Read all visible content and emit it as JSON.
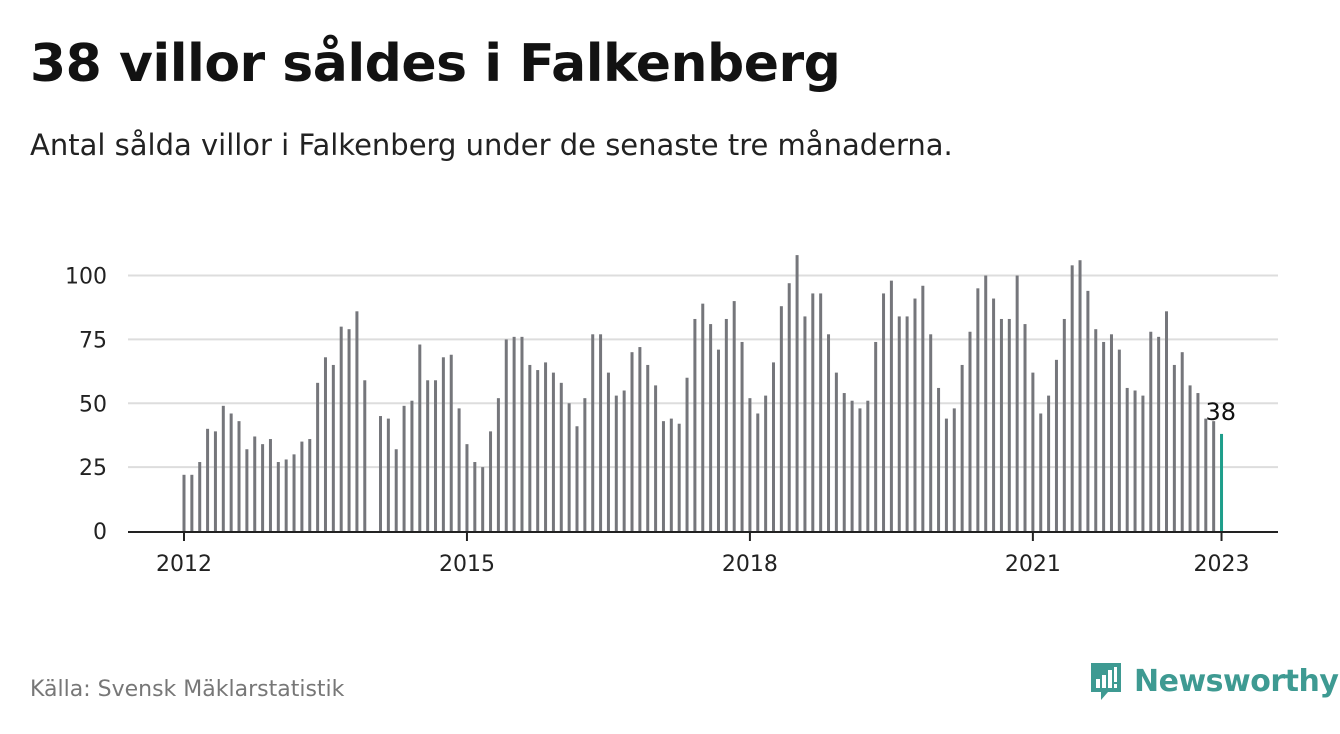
{
  "title": "38 villor såldes i Falkenberg",
  "subtitle": "Antal sålda villor i Falkenberg under de senaste tre månaderna.",
  "source": "Källa: Svensk Mäklarstatistik",
  "brand": {
    "name": "Newsworthy",
    "icon": "newsworthy-logo-icon"
  },
  "colors": {
    "bar": "#75767b",
    "highlight": "#1e9e8b",
    "grid": "#dddddd",
    "axis": "#222222",
    "brand": "#3e9a92"
  },
  "chart_data": {
    "type": "bar",
    "start_year": 2012,
    "values": [
      22,
      22,
      27,
      40,
      39,
      49,
      46,
      43,
      32,
      37,
      34,
      36,
      27,
      28,
      30,
      35,
      36,
      58,
      68,
      65,
      80,
      79,
      86,
      59,
      0,
      45,
      44,
      32,
      49,
      51,
      73,
      59,
      59,
      68,
      69,
      48,
      34,
      27,
      25,
      39,
      52,
      75,
      76,
      76,
      65,
      63,
      66,
      62,
      58,
      50,
      41,
      52,
      77,
      77,
      62,
      53,
      55,
      70,
      72,
      65,
      57,
      43,
      44,
      42,
      60,
      83,
      89,
      81,
      71,
      83,
      90,
      74,
      52,
      46,
      53,
      66,
      88,
      97,
      108,
      84,
      93,
      93,
      77,
      62,
      54,
      51,
      48,
      51,
      74,
      93,
      98,
      84,
      84,
      91,
      96,
      77,
      56,
      44,
      48,
      65,
      78,
      95,
      100,
      91,
      83,
      83,
      100,
      81,
      62,
      46,
      53,
      67,
      83,
      104,
      106,
      94,
      79,
      74,
      77,
      71,
      56,
      55,
      53,
      78,
      76,
      86,
      65,
      70,
      57,
      54,
      44,
      43,
      38
    ],
    "highlight_label": "38",
    "x_ticks": [
      "2012",
      "2015",
      "2018",
      "2021",
      "2023"
    ],
    "y_ticks": [
      0,
      25,
      50,
      75,
      100
    ],
    "ylim": [
      0,
      110
    ],
    "grid": true,
    "legend": "none"
  }
}
